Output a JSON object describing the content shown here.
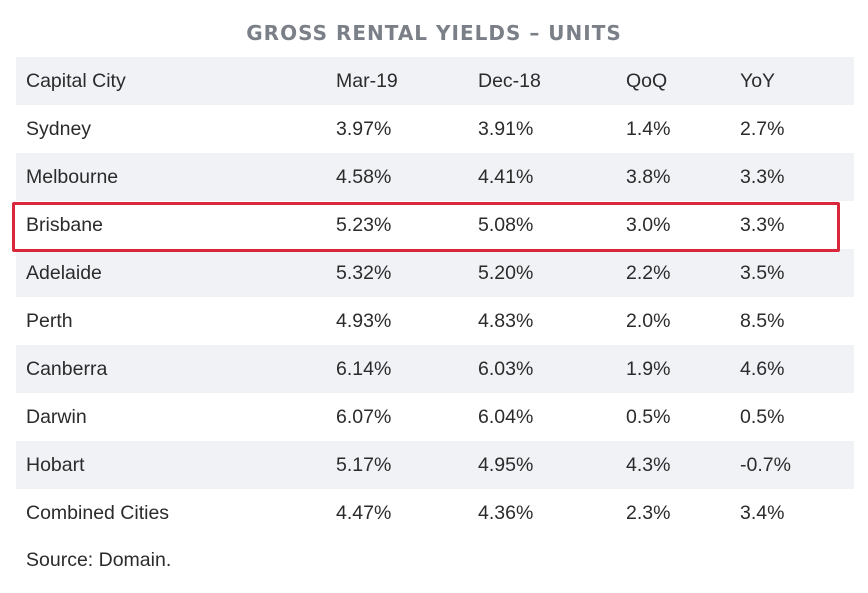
{
  "chart_data": {
    "type": "table",
    "title": "GROSS RENTAL YIELDS – UNITS",
    "columns": [
      "Capital City",
      "Mar-19",
      "Dec-18",
      "QoQ",
      "YoY"
    ],
    "rows": [
      [
        "Sydney",
        "3.97%",
        "3.91%",
        "1.4%",
        "2.7%"
      ],
      [
        "Melbourne",
        "4.58%",
        "4.41%",
        "3.8%",
        "3.3%"
      ],
      [
        "Brisbane",
        "5.23%",
        "5.08%",
        "3.0%",
        "3.3%"
      ],
      [
        "Adelaide",
        "5.32%",
        "5.20%",
        "2.2%",
        "3.5%"
      ],
      [
        "Perth",
        "4.93%",
        "4.83%",
        "2.0%",
        "8.5%"
      ],
      [
        "Canberra",
        "6.14%",
        "6.03%",
        "1.9%",
        "4.6%"
      ],
      [
        "Darwin",
        "6.07%",
        "6.04%",
        "0.5%",
        "0.5%"
      ],
      [
        "Hobart",
        "5.17%",
        "4.95%",
        "4.3%",
        "-0.7%"
      ],
      [
        "Combined Cities",
        "4.47%",
        "4.36%",
        "2.3%",
        "3.4%"
      ]
    ],
    "highlighted_row": "Brisbane",
    "source": "Source: Domain."
  },
  "colors": {
    "title": "#7b7f87",
    "text": "#2b2b2b",
    "shaded_row": "#f1f2f6",
    "highlight_border": "#d9283b"
  }
}
